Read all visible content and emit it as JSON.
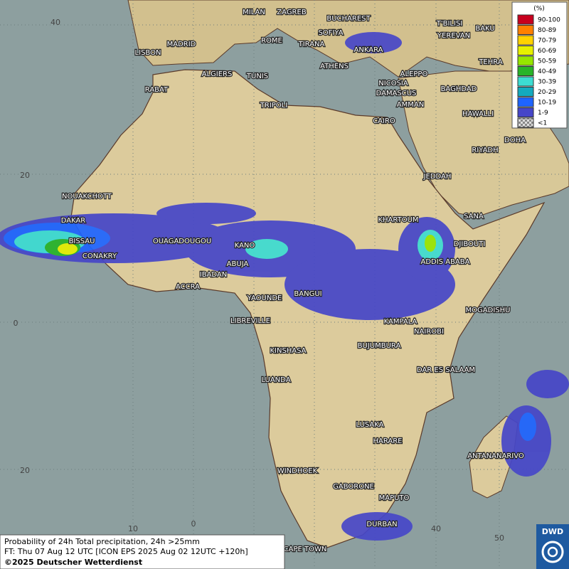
{
  "legend": {
    "title": "(%)",
    "items": [
      {
        "label": "90-100",
        "color": "#c8001e"
      },
      {
        "label": "80-89",
        "color": "#ff8000"
      },
      {
        "label": "70-79",
        "color": "#ffd200"
      },
      {
        "label": "60-69",
        "color": "#e6f000"
      },
      {
        "label": "50-59",
        "color": "#96e600"
      },
      {
        "label": "40-49",
        "color": "#28b428"
      },
      {
        "label": "30-39",
        "color": "#3cdcd2"
      },
      {
        "label": "20-29",
        "color": "#14aabe"
      },
      {
        "label": "10-19",
        "color": "#1e64ff"
      },
      {
        "label": "1-9",
        "color": "#4646c8"
      },
      {
        "label": "<1",
        "color": "checker"
      }
    ]
  },
  "cities": [
    "MILAN",
    "ZAGREB",
    "BUCHAREST",
    "T'BILISI",
    "BAKU",
    "SOFIYA",
    "YEREVAN",
    "MADRID",
    "ROME",
    "TIRANA",
    "ANKARA",
    "LISBON",
    "TEHRA",
    "ATHENS",
    "ALGIERS",
    "TUNIS",
    "ALEPPO",
    "RABAT",
    "NICOSIA",
    "BAGHDAD",
    "DAMASCUS",
    "TRIPOLI",
    "AMMAN",
    "HAWALLI",
    "CAIRO",
    "DOHA",
    "RIYADH",
    "JEDDAH",
    "NOUAKCHOTT",
    "KHARTOUM",
    "SANA",
    "DAKAR",
    "BISSAU",
    "DJIBOUTI",
    "OUAGADOUGOU",
    "KANO",
    "CONAKRY",
    "ABUJA",
    "ADDIS ABABA",
    "IBADAN",
    "ACCRA",
    "YAOUNDE",
    "BANGUI",
    "MOGADISHU",
    "LIBREVILLE",
    "KAMPALA",
    "NAIROBI",
    "BUJUMBURA",
    "KINSHASA",
    "DAR ES SALAAM",
    "LUANDA",
    "LUSAKA",
    "HARARE",
    "ANTANANARIVO",
    "WINDHOEK",
    "GABORONE",
    "MAPUTO",
    "DURBAN",
    "CAPE TOWN"
  ],
  "graticule": {
    "lat_labels": [
      "40",
      "20",
      "0",
      "20"
    ],
    "lon_labels": [
      "10",
      "0",
      "40",
      "50"
    ]
  },
  "footer": {
    "line1": "Probability of 24h Total precipitation, 24h >25mm",
    "line2": "FT: Thu 07 Aug 12 UTC [ICON EPS 2025 Aug 02 12UTC +120h]",
    "line3": "©2025 Deutscher Wetterdienst"
  },
  "logo": "DWD"
}
